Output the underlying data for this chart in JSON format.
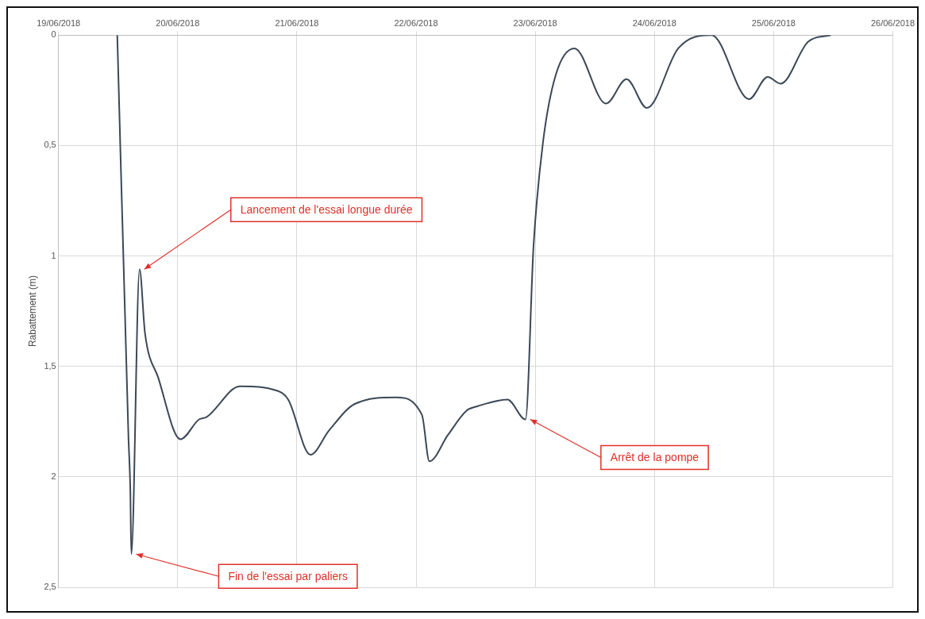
{
  "chart_data": {
    "type": "line",
    "ylabel": "Rabattement (m)",
    "x": [
      "2018-06-19T11:50",
      "2018-06-19T14:05",
      "2018-06-19T14:27",
      "2018-06-19T14:40",
      "2018-06-19T16:19",
      "2018-06-19T17:25",
      "2018-06-19T20:04",
      "2018-06-20T00:33",
      "2018-06-20T04:18",
      "2018-06-20T05:47",
      "2018-06-20T12:32",
      "2018-06-20T19:59",
      "2018-06-20T22:15",
      "2018-06-21T02:44",
      "2018-06-21T06:29",
      "2018-06-21T11:40",
      "2018-06-21T19:57",
      "2018-06-22T01:11",
      "2018-06-22T02:41",
      "2018-06-22T06:26",
      "2018-06-22T10:12",
      "2018-06-22T12:26",
      "2018-06-22T18:24",
      "2018-06-22T22:02",
      "2018-06-22T23:40",
      "2018-06-23T01:32",
      "2018-06-23T04:08",
      "2018-06-23T07:54",
      "2018-06-23T14:15",
      "2018-06-23T18:23",
      "2018-06-23T22:29",
      "2018-06-24T04:48",
      "2018-06-24T11:31",
      "2018-06-24T19:03",
      "2018-06-24T22:48",
      "2018-06-25T01:25",
      "2018-06-25T06:58",
      "2018-06-25T11:31"
    ],
    "series": [
      {
        "color": "#3b4856",
        "values": [
          0,
          1.82,
          2.05,
          2.35,
          1.06,
          1.35,
          1.55,
          1.83,
          1.74,
          1.73,
          1.59,
          1.61,
          1.65,
          1.9,
          1.79,
          1.67,
          1.64,
          1.72,
          1.93,
          1.81,
          1.7,
          1.68,
          1.65,
          1.74,
          0.95,
          0.49,
          0.18,
          0.06,
          0.31,
          0.2,
          0.33,
          0.06,
          0,
          0.29,
          0.19,
          0.22,
          0.03,
          0
        ]
      }
    ],
    "xlim": [
      "2018-06-19",
      "2018-06-26"
    ],
    "xticks": [
      {
        "value": "2018-06-19",
        "label": "19/06/2018"
      },
      {
        "value": "2018-06-20",
        "label": "20/06/2018"
      },
      {
        "value": "2018-06-21",
        "label": "21/06/2018"
      },
      {
        "value": "2018-06-22",
        "label": "22/06/2018"
      },
      {
        "value": "2018-06-23",
        "label": "23/06/2018"
      },
      {
        "value": "2018-06-24",
        "label": "24/06/2018"
      },
      {
        "value": "2018-06-25",
        "label": "25/06/2018"
      },
      {
        "value": "2018-06-26",
        "label": "26/06/2018"
      }
    ],
    "ylim": [
      2.5,
      0
    ],
    "yticks": [
      0,
      {
        "value": 0.5,
        "label": "0,5"
      },
      1,
      {
        "value": 1.5,
        "label": "1,5"
      },
      2,
      {
        "value": 2.5,
        "label": "2,5"
      }
    ],
    "grid": true,
    "marker": "none",
    "line_style": "solid",
    "legend": false,
    "annotations": [
      {
        "text": "Lancement de l'essai longue durée",
        "x": "2018-06-19T16:19",
        "y": 1.06
      },
      {
        "text": "Fin de l'essai par paliers",
        "x": "2018-06-19T14:40",
        "y": 2.35
      },
      {
        "text": "Arrêt de la pompe",
        "x": "2018-06-22T22:02",
        "y": 1.74
      }
    ]
  }
}
